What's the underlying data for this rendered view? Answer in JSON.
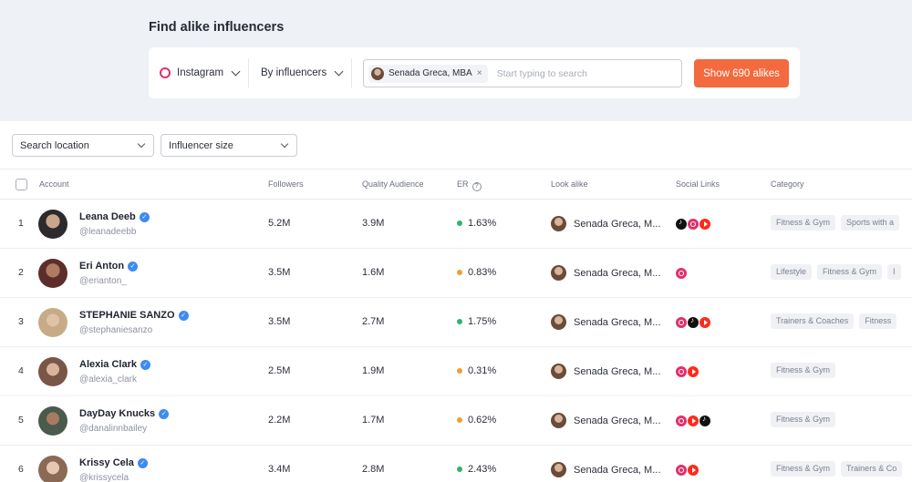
{
  "page": {
    "title": "Find alike influencers"
  },
  "search": {
    "platform": "Instagram",
    "mode": "By influencers",
    "chip_label": "Senada Greca, MBA",
    "chip_remove": "×",
    "placeholder": "Start typing to search",
    "button_label": "Show 690 alikes"
  },
  "filters": {
    "location_label": "Search location",
    "size_label": "Influencer size"
  },
  "table": {
    "headers": {
      "account": "Account",
      "followers": "Followers",
      "quality_audience": "Quality Audience",
      "er": "ER",
      "look_alike": "Look alike",
      "social_links": "Social Links",
      "category": "Category"
    },
    "help_icon": "?",
    "verified_icon": "✓",
    "colors": {
      "er_high": "#2fb36b",
      "er_medium": "#f0a030"
    },
    "rows": [
      {
        "rank": "1",
        "name": "Leana Deeb",
        "handle": "@leanadeebb",
        "followers": "5.2M",
        "quality": "3.9M",
        "er": "1.63%",
        "er_level": "high",
        "look_alike": "Senada Greca, M...",
        "social": [
          "tiktok-icon",
          "instagram-icon",
          "youtube-icon"
        ],
        "categories": [
          "Fitness & Gym",
          "Sports with a"
        ]
      },
      {
        "rank": "2",
        "name": "Eri Anton",
        "handle": "@erianton_",
        "followers": "3.5M",
        "quality": "1.6M",
        "er": "0.83%",
        "er_level": "medium",
        "look_alike": "Senada Greca, M...",
        "social": [
          "instagram-icon"
        ],
        "categories": [
          "Lifestyle",
          "Fitness & Gym",
          "I"
        ]
      },
      {
        "rank": "3",
        "name": "STEPHANIE SANZO",
        "handle": "@stephaniesanzo",
        "followers": "3.5M",
        "quality": "2.7M",
        "er": "1.75%",
        "er_level": "high",
        "look_alike": "Senada Greca, M...",
        "social": [
          "instagram-icon",
          "tiktok-icon",
          "youtube-icon"
        ],
        "categories": [
          "Trainers & Coaches",
          "Fitness"
        ]
      },
      {
        "rank": "4",
        "name": "Alexia Clark",
        "handle": "@alexia_clark",
        "followers": "2.5M",
        "quality": "1.9M",
        "er": "0.31%",
        "er_level": "medium",
        "look_alike": "Senada Greca, M...",
        "social": [
          "instagram-icon",
          "youtube-icon"
        ],
        "categories": [
          "Fitness & Gym"
        ]
      },
      {
        "rank": "5",
        "name": "DayDay Knucks",
        "handle": "@danalinnbailey",
        "followers": "2.2M",
        "quality": "1.7M",
        "er": "0.62%",
        "er_level": "medium",
        "look_alike": "Senada Greca, M...",
        "social": [
          "instagram-icon",
          "youtube-icon",
          "tiktok-icon"
        ],
        "categories": [
          "Fitness & Gym"
        ]
      },
      {
        "rank": "6",
        "name": "Krissy Cela",
        "handle": "@krissycela",
        "followers": "3.4M",
        "quality": "2.8M",
        "er": "2.43%",
        "er_level": "high",
        "look_alike": "Senada Greca, M...",
        "social": [
          "instagram-icon",
          "youtube-icon"
        ],
        "categories": [
          "Fitness & Gym",
          "Trainers & Co"
        ]
      }
    ]
  }
}
